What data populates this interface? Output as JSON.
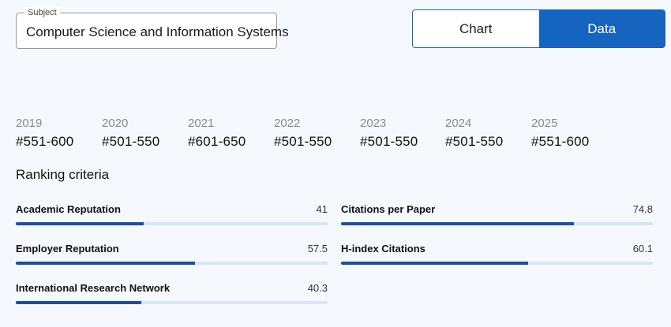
{
  "subject": {
    "legend": "Subject",
    "value": "Computer Science and Information Systems"
  },
  "toggle": {
    "chart_label": "Chart",
    "data_label": "Data",
    "selected": "Data"
  },
  "years": [
    {
      "year": "2019",
      "rank": "#551-600"
    },
    {
      "year": "2020",
      "rank": "#501-550"
    },
    {
      "year": "2021",
      "rank": "#601-650"
    },
    {
      "year": "2022",
      "rank": "#501-550"
    },
    {
      "year": "2023",
      "rank": "#501-550"
    },
    {
      "year": "2024",
      "rank": "#501-550"
    },
    {
      "year": "2025",
      "rank": "#551-600"
    }
  ],
  "criteria": {
    "title": "Ranking criteria",
    "items": [
      {
        "name": "Academic Reputation",
        "value": "41"
      },
      {
        "name": "Citations per Paper",
        "value": "74.8"
      },
      {
        "name": "Employer Reputation",
        "value": "57.5"
      },
      {
        "name": "H-index Citations",
        "value": "60.1"
      },
      {
        "name": "International Research Network",
        "value": "40.3"
      }
    ]
  },
  "colors": {
    "accent": "#1565c0",
    "bar_fill": "#1b4fa0",
    "bar_track": "#d7e6f7",
    "background": "#f5f8fd"
  }
}
